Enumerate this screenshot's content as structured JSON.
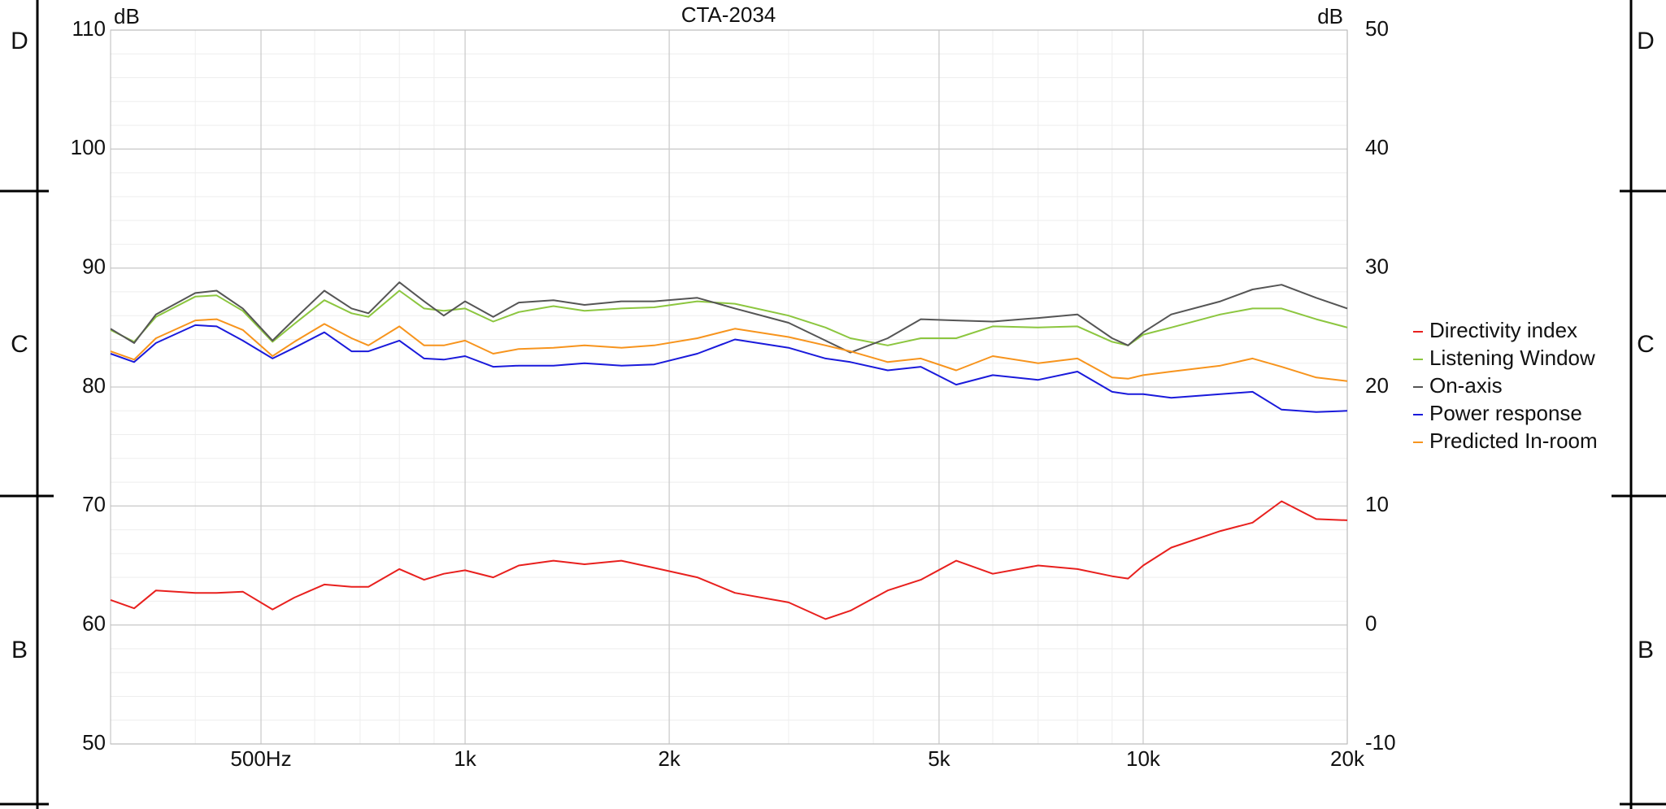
{
  "chart_data": {
    "type": "line",
    "title": "CTA-2034",
    "ylabel": "dB",
    "y2label": "dB",
    "side_labels": [
      "D",
      "C",
      "B"
    ],
    "xscale": "log",
    "grid": true,
    "legend": "right",
    "xlim": [
      300,
      20000
    ],
    "xticks": [
      {
        "value": 500,
        "label": "500Hz"
      },
      {
        "value": 1000,
        "label": "1k"
      },
      {
        "value": 2000,
        "label": "2k"
      },
      {
        "value": 5000,
        "label": "5k"
      },
      {
        "value": 10000,
        "label": "10k"
      },
      {
        "value": 20000,
        "label": "20k"
      }
    ],
    "xminorticks": [
      400,
      600,
      700,
      800,
      900,
      3000,
      4000,
      6000,
      7000,
      8000,
      9000
    ],
    "ylim": [
      50,
      110
    ],
    "yticks": [
      50,
      60,
      70,
      80,
      90,
      100,
      110
    ],
    "yminorticks": [
      52,
      54,
      56,
      58,
      62,
      64,
      66,
      68,
      72,
      74,
      76,
      78,
      82,
      84,
      86,
      88,
      92,
      94,
      96,
      98,
      102,
      104,
      106,
      108
    ],
    "y2lim": [
      -10,
      50
    ],
    "y2ticks": [
      -10,
      0,
      10,
      20,
      30,
      40,
      50
    ],
    "x": [
      300,
      325,
      350,
      400,
      430,
      470,
      520,
      560,
      620,
      680,
      720,
      800,
      870,
      930,
      1000,
      1100,
      1200,
      1350,
      1500,
      1700,
      1900,
      2200,
      2500,
      3000,
      3400,
      3700,
      4200,
      4700,
      5300,
      6000,
      7000,
      8000,
      9000,
      9500,
      10000,
      11000,
      13000,
      14500,
      16000,
      18000,
      20000
    ],
    "series": [
      {
        "name": "Directivity index",
        "color": "#e8201e",
        "axis": "y2",
        "values": [
          2.1,
          1.4,
          2.9,
          2.7,
          2.7,
          2.8,
          1.3,
          2.3,
          3.4,
          3.2,
          3.2,
          4.7,
          3.8,
          4.3,
          4.6,
          4.0,
          5.0,
          5.4,
          5.1,
          5.4,
          4.8,
          4.0,
          2.7,
          1.9,
          0.5,
          1.2,
          2.9,
          3.8,
          5.4,
          4.3,
          5.0,
          4.7,
          4.1,
          3.9,
          5.0,
          6.5,
          7.9,
          8.6,
          10.4,
          8.9,
          8.8
        ]
      },
      {
        "name": "Listening Window",
        "color": "#8cc63f",
        "values": [
          84.8,
          83.8,
          85.9,
          87.6,
          87.7,
          86.4,
          83.8,
          85.3,
          87.3,
          86.2,
          85.9,
          88.1,
          86.6,
          86.4,
          86.6,
          85.5,
          86.3,
          86.8,
          86.4,
          86.6,
          86.7,
          87.2,
          87.0,
          86.0,
          85.0,
          84.1,
          83.5,
          84.1,
          84.1,
          85.1,
          85.0,
          85.1,
          83.8,
          83.5,
          84.4,
          85.0,
          86.1,
          86.6,
          86.6,
          85.7,
          85.0
        ]
      },
      {
        "name": "On-axis",
        "color": "#555555",
        "values": [
          84.9,
          83.7,
          86.1,
          87.9,
          88.1,
          86.6,
          83.9,
          85.7,
          88.1,
          86.6,
          86.2,
          88.8,
          87.2,
          86.0,
          87.2,
          85.9,
          87.1,
          87.3,
          86.9,
          87.2,
          87.2,
          87.5,
          86.6,
          85.4,
          83.9,
          82.9,
          84.1,
          85.7,
          85.6,
          85.5,
          85.8,
          86.1,
          84.1,
          83.5,
          84.6,
          86.1,
          87.2,
          88.2,
          88.6,
          87.5,
          86.6
        ]
      },
      {
        "name": "Power response",
        "color": "#1a1adb",
        "values": [
          82.8,
          82.1,
          83.7,
          85.2,
          85.1,
          83.9,
          82.4,
          83.3,
          84.6,
          83.0,
          83.0,
          83.9,
          82.4,
          82.3,
          82.6,
          81.7,
          81.8,
          81.8,
          82.0,
          81.8,
          81.9,
          82.8,
          84.0,
          83.3,
          82.4,
          82.1,
          81.4,
          81.7,
          80.2,
          81.0,
          80.6,
          81.3,
          79.6,
          79.4,
          79.4,
          79.1,
          79.4,
          79.6,
          78.1,
          77.9,
          78.0
        ]
      },
      {
        "name": "Predicted In-room",
        "color": "#f7941d",
        "values": [
          83.0,
          82.3,
          84.1,
          85.6,
          85.7,
          84.8,
          82.6,
          83.8,
          85.3,
          84.1,
          83.5,
          85.1,
          83.5,
          83.5,
          83.9,
          82.8,
          83.2,
          83.3,
          83.5,
          83.3,
          83.5,
          84.1,
          84.9,
          84.2,
          83.5,
          83.0,
          82.1,
          82.4,
          81.4,
          82.6,
          82.0,
          82.4,
          80.8,
          80.7,
          81.0,
          81.3,
          81.8,
          82.4,
          81.7,
          80.8,
          80.5
        ]
      }
    ]
  }
}
